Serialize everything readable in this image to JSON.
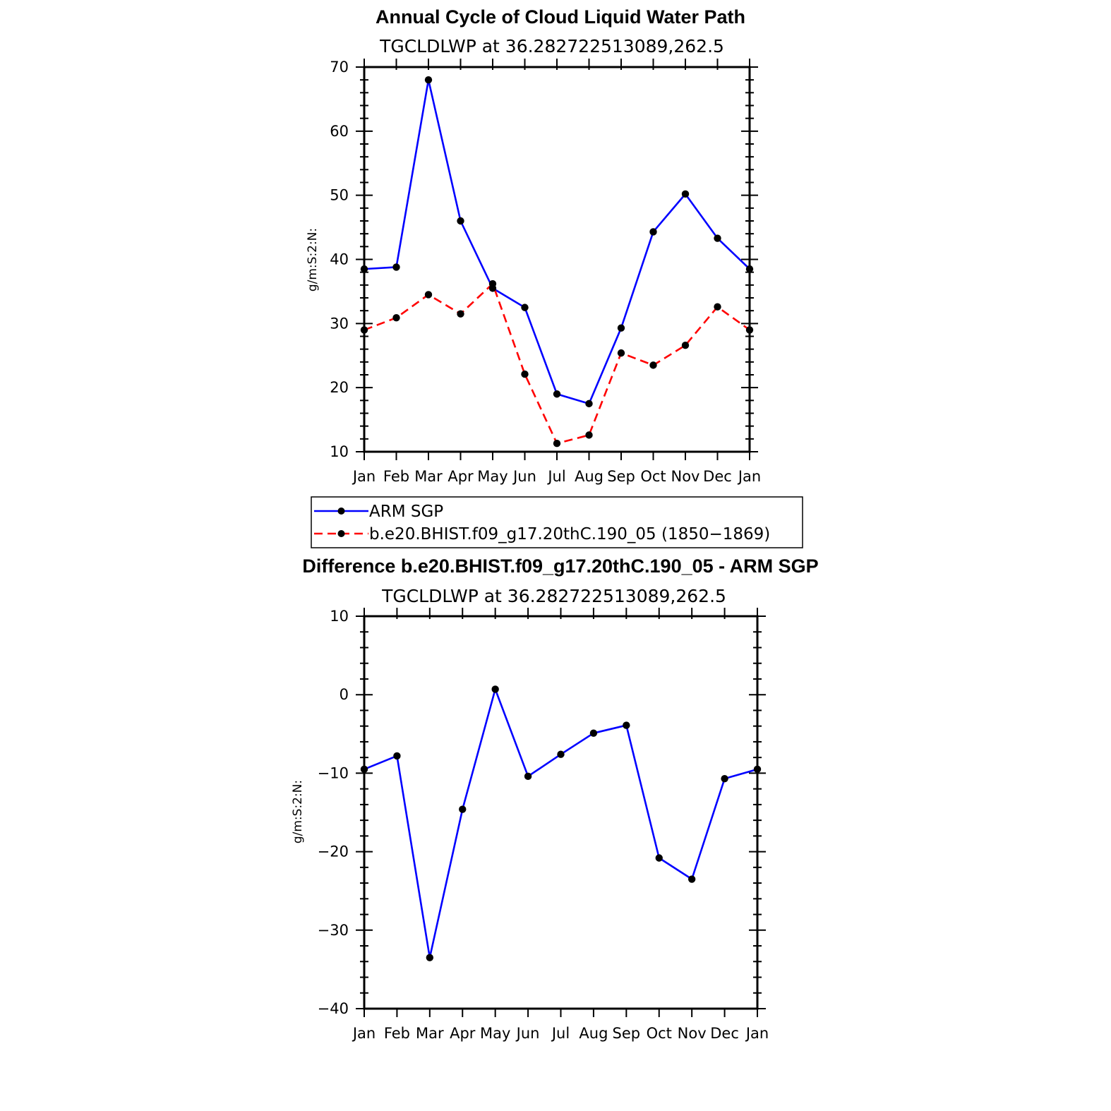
{
  "chart_data": [
    {
      "type": "line",
      "title": "Annual Cycle of Cloud Liquid Water Path",
      "subtitle": "TGCLDLWP  at  36.282722513089,262.5",
      "ylabel": "g/m:S:2:N:",
      "xlabel": "",
      "categories": [
        "Jan",
        "Feb",
        "Mar",
        "Apr",
        "May",
        "Jun",
        "Jul",
        "Aug",
        "Sep",
        "Oct",
        "Nov",
        "Dec",
        "Jan"
      ],
      "ylim": [
        10,
        70
      ],
      "yticks": [
        "10",
        "20",
        "30",
        "40",
        "50",
        "60",
        "70"
      ],
      "series": [
        {
          "name": "ARM  SGP",
          "color": "#0000ff",
          "dash": "solid",
          "values": [
            38.5,
            38.8,
            68.0,
            46.0,
            35.5,
            32.5,
            19.0,
            17.5,
            29.3,
            44.3,
            50.2,
            43.3,
            38.5
          ]
        },
        {
          "name": "b.e20.BHIST.f09_g17.20thC.190_05 (1850−1869)",
          "color": "#ff0000",
          "dash": "dashed",
          "values": [
            29.0,
            30.9,
            34.5,
            31.5,
            36.2,
            22.1,
            11.3,
            12.6,
            25.4,
            23.5,
            26.6,
            32.6,
            29.0
          ]
        }
      ],
      "legend_position": "bottom",
      "grid": false
    },
    {
      "type": "line",
      "title": "Difference b.e20.BHIST.f09_g17.20thC.190_05 - ARM SGP",
      "subtitle": "TGCLDLWP  at  36.282722513089,262.5",
      "ylabel": "g/m:S:2:N:",
      "xlabel": "",
      "categories": [
        "Jan",
        "Feb",
        "Mar",
        "Apr",
        "May",
        "Jun",
        "Jul",
        "Aug",
        "Sep",
        "Oct",
        "Nov",
        "Dec",
        "Jan"
      ],
      "ylim": [
        -40,
        10
      ],
      "yticks": [
        "−40",
        "−30",
        "−20",
        "−10",
        "0",
        "10"
      ],
      "series": [
        {
          "color": "#0000ff",
          "dash": "solid",
          "values": [
            -9.5,
            -7.8,
            -33.5,
            -14.6,
            0.7,
            -10.4,
            -7.6,
            -4.9,
            -3.9,
            -20.8,
            -23.5,
            -10.7,
            -9.5
          ]
        }
      ],
      "grid": false
    }
  ]
}
